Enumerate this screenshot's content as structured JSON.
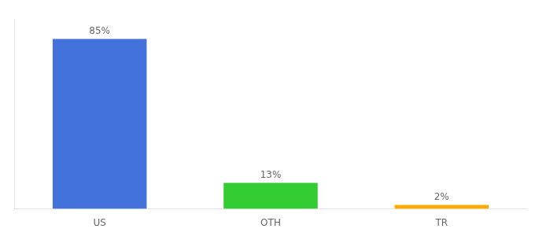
{
  "chart_data": {
    "type": "bar",
    "categories": [
      "US",
      "OTH",
      "TR"
    ],
    "values": [
      85,
      13,
      2
    ],
    "value_labels": [
      "85%",
      "13%",
      "2%"
    ],
    "colors": [
      "#4472db",
      "#33cc33",
      "#ffaa00"
    ],
    "ylim": [
      0,
      95
    ],
    "data_labels": true,
    "tick_labels": "x",
    "grid": false
  }
}
